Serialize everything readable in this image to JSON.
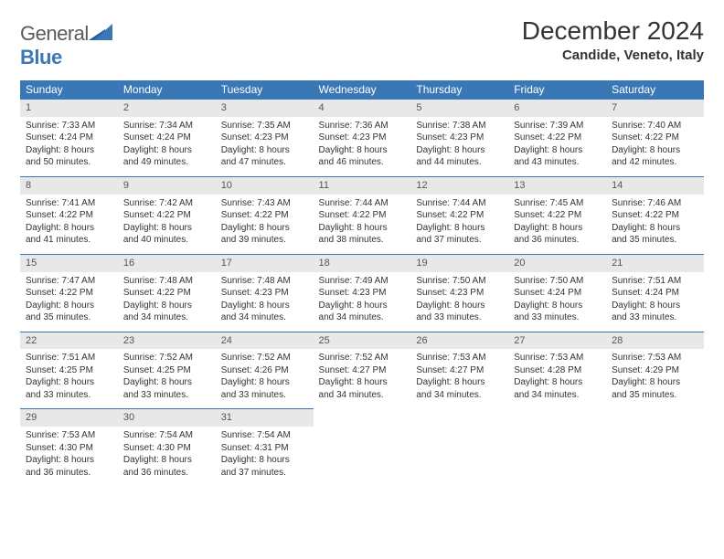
{
  "logo": {
    "general": "General",
    "blue": "Blue"
  },
  "title": "December 2024",
  "location": "Candide, Veneto, Italy",
  "colors": {
    "header_bg": "#3a78b5",
    "header_fg": "#ffffff",
    "daynum_bg": "#e8e8e8",
    "rule": "#3a78b5",
    "text": "#333333",
    "logo_gray": "#5a5a5a",
    "logo_blue": "#3a78b5"
  },
  "weekdays": [
    "Sunday",
    "Monday",
    "Tuesday",
    "Wednesday",
    "Thursday",
    "Friday",
    "Saturday"
  ],
  "days": [
    {
      "n": "1",
      "sunrise": "Sunrise: 7:33 AM",
      "sunset": "Sunset: 4:24 PM",
      "day1": "Daylight: 8 hours",
      "day2": "and 50 minutes."
    },
    {
      "n": "2",
      "sunrise": "Sunrise: 7:34 AM",
      "sunset": "Sunset: 4:24 PM",
      "day1": "Daylight: 8 hours",
      "day2": "and 49 minutes."
    },
    {
      "n": "3",
      "sunrise": "Sunrise: 7:35 AM",
      "sunset": "Sunset: 4:23 PM",
      "day1": "Daylight: 8 hours",
      "day2": "and 47 minutes."
    },
    {
      "n": "4",
      "sunrise": "Sunrise: 7:36 AM",
      "sunset": "Sunset: 4:23 PM",
      "day1": "Daylight: 8 hours",
      "day2": "and 46 minutes."
    },
    {
      "n": "5",
      "sunrise": "Sunrise: 7:38 AM",
      "sunset": "Sunset: 4:23 PM",
      "day1": "Daylight: 8 hours",
      "day2": "and 44 minutes."
    },
    {
      "n": "6",
      "sunrise": "Sunrise: 7:39 AM",
      "sunset": "Sunset: 4:22 PM",
      "day1": "Daylight: 8 hours",
      "day2": "and 43 minutes."
    },
    {
      "n": "7",
      "sunrise": "Sunrise: 7:40 AM",
      "sunset": "Sunset: 4:22 PM",
      "day1": "Daylight: 8 hours",
      "day2": "and 42 minutes."
    },
    {
      "n": "8",
      "sunrise": "Sunrise: 7:41 AM",
      "sunset": "Sunset: 4:22 PM",
      "day1": "Daylight: 8 hours",
      "day2": "and 41 minutes."
    },
    {
      "n": "9",
      "sunrise": "Sunrise: 7:42 AM",
      "sunset": "Sunset: 4:22 PM",
      "day1": "Daylight: 8 hours",
      "day2": "and 40 minutes."
    },
    {
      "n": "10",
      "sunrise": "Sunrise: 7:43 AM",
      "sunset": "Sunset: 4:22 PM",
      "day1": "Daylight: 8 hours",
      "day2": "and 39 minutes."
    },
    {
      "n": "11",
      "sunrise": "Sunrise: 7:44 AM",
      "sunset": "Sunset: 4:22 PM",
      "day1": "Daylight: 8 hours",
      "day2": "and 38 minutes."
    },
    {
      "n": "12",
      "sunrise": "Sunrise: 7:44 AM",
      "sunset": "Sunset: 4:22 PM",
      "day1": "Daylight: 8 hours",
      "day2": "and 37 minutes."
    },
    {
      "n": "13",
      "sunrise": "Sunrise: 7:45 AM",
      "sunset": "Sunset: 4:22 PM",
      "day1": "Daylight: 8 hours",
      "day2": "and 36 minutes."
    },
    {
      "n": "14",
      "sunrise": "Sunrise: 7:46 AM",
      "sunset": "Sunset: 4:22 PM",
      "day1": "Daylight: 8 hours",
      "day2": "and 35 minutes."
    },
    {
      "n": "15",
      "sunrise": "Sunrise: 7:47 AM",
      "sunset": "Sunset: 4:22 PM",
      "day1": "Daylight: 8 hours",
      "day2": "and 35 minutes."
    },
    {
      "n": "16",
      "sunrise": "Sunrise: 7:48 AM",
      "sunset": "Sunset: 4:22 PM",
      "day1": "Daylight: 8 hours",
      "day2": "and 34 minutes."
    },
    {
      "n": "17",
      "sunrise": "Sunrise: 7:48 AM",
      "sunset": "Sunset: 4:23 PM",
      "day1": "Daylight: 8 hours",
      "day2": "and 34 minutes."
    },
    {
      "n": "18",
      "sunrise": "Sunrise: 7:49 AM",
      "sunset": "Sunset: 4:23 PM",
      "day1": "Daylight: 8 hours",
      "day2": "and 34 minutes."
    },
    {
      "n": "19",
      "sunrise": "Sunrise: 7:50 AM",
      "sunset": "Sunset: 4:23 PM",
      "day1": "Daylight: 8 hours",
      "day2": "and 33 minutes."
    },
    {
      "n": "20",
      "sunrise": "Sunrise: 7:50 AM",
      "sunset": "Sunset: 4:24 PM",
      "day1": "Daylight: 8 hours",
      "day2": "and 33 minutes."
    },
    {
      "n": "21",
      "sunrise": "Sunrise: 7:51 AM",
      "sunset": "Sunset: 4:24 PM",
      "day1": "Daylight: 8 hours",
      "day2": "and 33 minutes."
    },
    {
      "n": "22",
      "sunrise": "Sunrise: 7:51 AM",
      "sunset": "Sunset: 4:25 PM",
      "day1": "Daylight: 8 hours",
      "day2": "and 33 minutes."
    },
    {
      "n": "23",
      "sunrise": "Sunrise: 7:52 AM",
      "sunset": "Sunset: 4:25 PM",
      "day1": "Daylight: 8 hours",
      "day2": "and 33 minutes."
    },
    {
      "n": "24",
      "sunrise": "Sunrise: 7:52 AM",
      "sunset": "Sunset: 4:26 PM",
      "day1": "Daylight: 8 hours",
      "day2": "and 33 minutes."
    },
    {
      "n": "25",
      "sunrise": "Sunrise: 7:52 AM",
      "sunset": "Sunset: 4:27 PM",
      "day1": "Daylight: 8 hours",
      "day2": "and 34 minutes."
    },
    {
      "n": "26",
      "sunrise": "Sunrise: 7:53 AM",
      "sunset": "Sunset: 4:27 PM",
      "day1": "Daylight: 8 hours",
      "day2": "and 34 minutes."
    },
    {
      "n": "27",
      "sunrise": "Sunrise: 7:53 AM",
      "sunset": "Sunset: 4:28 PM",
      "day1": "Daylight: 8 hours",
      "day2": "and 34 minutes."
    },
    {
      "n": "28",
      "sunrise": "Sunrise: 7:53 AM",
      "sunset": "Sunset: 4:29 PM",
      "day1": "Daylight: 8 hours",
      "day2": "and 35 minutes."
    },
    {
      "n": "29",
      "sunrise": "Sunrise: 7:53 AM",
      "sunset": "Sunset: 4:30 PM",
      "day1": "Daylight: 8 hours",
      "day2": "and 36 minutes."
    },
    {
      "n": "30",
      "sunrise": "Sunrise: 7:54 AM",
      "sunset": "Sunset: 4:30 PM",
      "day1": "Daylight: 8 hours",
      "day2": "and 36 minutes."
    },
    {
      "n": "31",
      "sunrise": "Sunrise: 7:54 AM",
      "sunset": "Sunset: 4:31 PM",
      "day1": "Daylight: 8 hours",
      "day2": "and 37 minutes."
    }
  ]
}
